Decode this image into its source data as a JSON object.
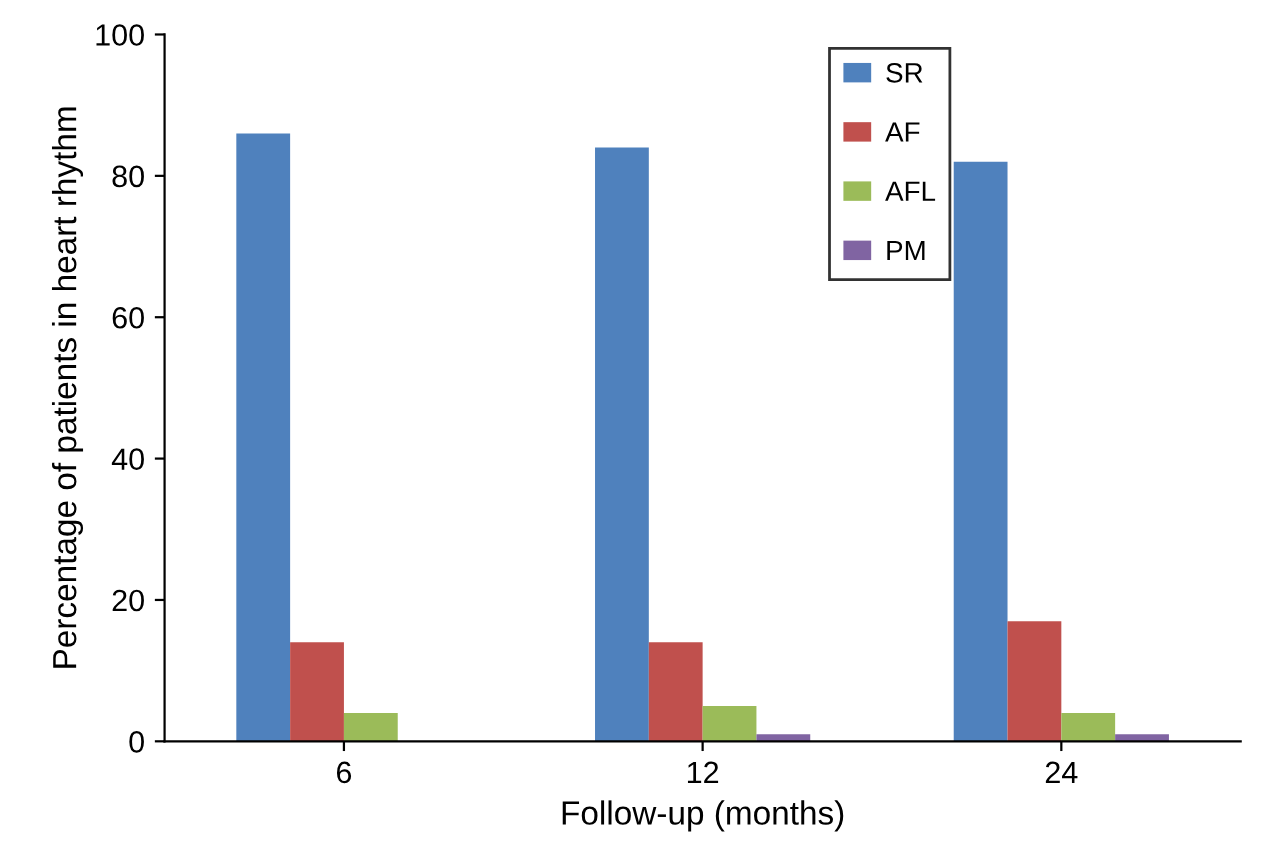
{
  "chart_data": {
    "type": "bar",
    "xlabel": "Follow-up (months)",
    "ylabel": "Percentage of patients in heart rhythm",
    "categories": [
      "6",
      "12",
      "24"
    ],
    "series": [
      {
        "name": "SR",
        "color": "#4f81bd",
        "values": [
          86,
          84,
          82
        ]
      },
      {
        "name": "AF",
        "color": "#c0504d",
        "values": [
          14,
          14,
          17
        ]
      },
      {
        "name": "AFL",
        "color": "#9bbb59",
        "values": [
          4,
          5,
          4
        ]
      },
      {
        "name": "PM",
        "color": "#8064a2",
        "values": [
          0,
          1,
          1
        ]
      }
    ],
    "ylim": [
      0,
      100
    ],
    "yticks": [
      0,
      20,
      40,
      60,
      80,
      100
    ],
    "grid": false,
    "legend": "top"
  }
}
